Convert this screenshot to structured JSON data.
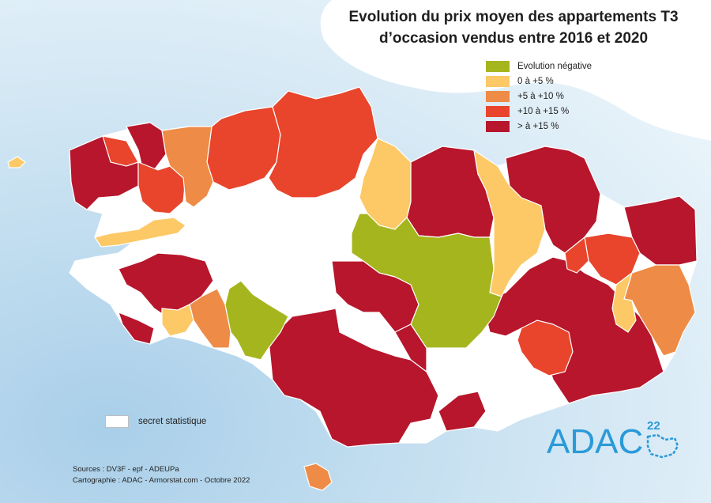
{
  "title": {
    "line1": "Evolution du prix moyen des appartements T3",
    "line2": "d’occasion vendus entre 2016 et 2020"
  },
  "legend": {
    "items": [
      {
        "label": "Evolution négative",
        "color": "#a5b51d"
      },
      {
        "label": "0 à +5 %",
        "color": "#fcc966"
      },
      {
        "label": "+5 à +10 %",
        "color": "#ee8b46"
      },
      {
        "label": "+10 à +15 %",
        "color": "#e8452c"
      },
      {
        "label": "> à +15 %",
        "color": "#b7162c"
      }
    ],
    "secret_label": "secret  statistique",
    "secret_color": "#ffffff"
  },
  "sources": {
    "line1": "Sources : DV3F - epf - ADEUPa",
    "line2": "Cartographie : ADAC - Armorstat.com - Octobre 2022"
  },
  "logo": {
    "text": "ADAC",
    "number": "22",
    "color": "#2a9ad8"
  },
  "colors": {
    "sea": "#c6dff0",
    "land_outline": "#ffffff"
  }
}
